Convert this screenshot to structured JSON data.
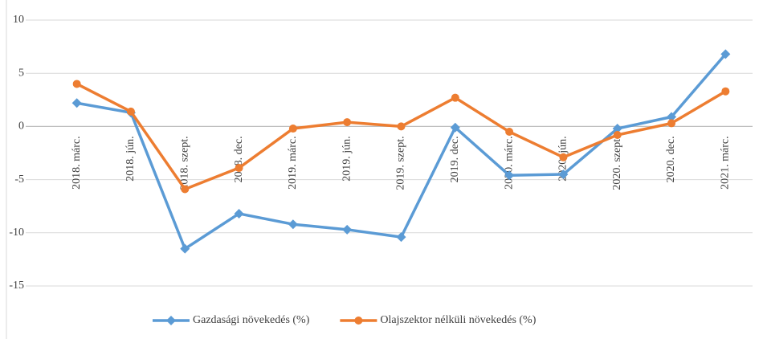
{
  "chart_data": {
    "type": "line",
    "categories": [
      "2018. márc.",
      "2018. jún.",
      "2018. szept.",
      "2018. dec.",
      "2019. márc.",
      "2019. jún.",
      "2019. szept.",
      "2019. dec.",
      "2020. márc.",
      "2020. jún.",
      "2020. szept.",
      "2020. dec.",
      "2021. márc."
    ],
    "series": [
      {
        "name": "Gazdasági növekedés (%)",
        "color": "#5b9bd5",
        "marker": "diamond",
        "values": [
          2.2,
          1.3,
          -11.5,
          -8.2,
          -9.2,
          -9.7,
          -10.4,
          -0.1,
          -4.6,
          -4.5,
          -0.2,
          0.9,
          6.8
        ]
      },
      {
        "name": "Olajszektor nélküli növekedés (%)",
        "color": "#ed7d31",
        "marker": "circle",
        "values": [
          4.0,
          1.4,
          -5.9,
          -3.9,
          -0.2,
          0.4,
          0.0,
          2.7,
          -0.5,
          -2.9,
          -0.8,
          0.3,
          3.3
        ]
      }
    ],
    "ylim": [
      -15,
      10
    ],
    "yticks": [
      -15,
      -10,
      -5,
      0,
      5,
      10
    ],
    "grid": true,
    "legend": "bottom"
  }
}
